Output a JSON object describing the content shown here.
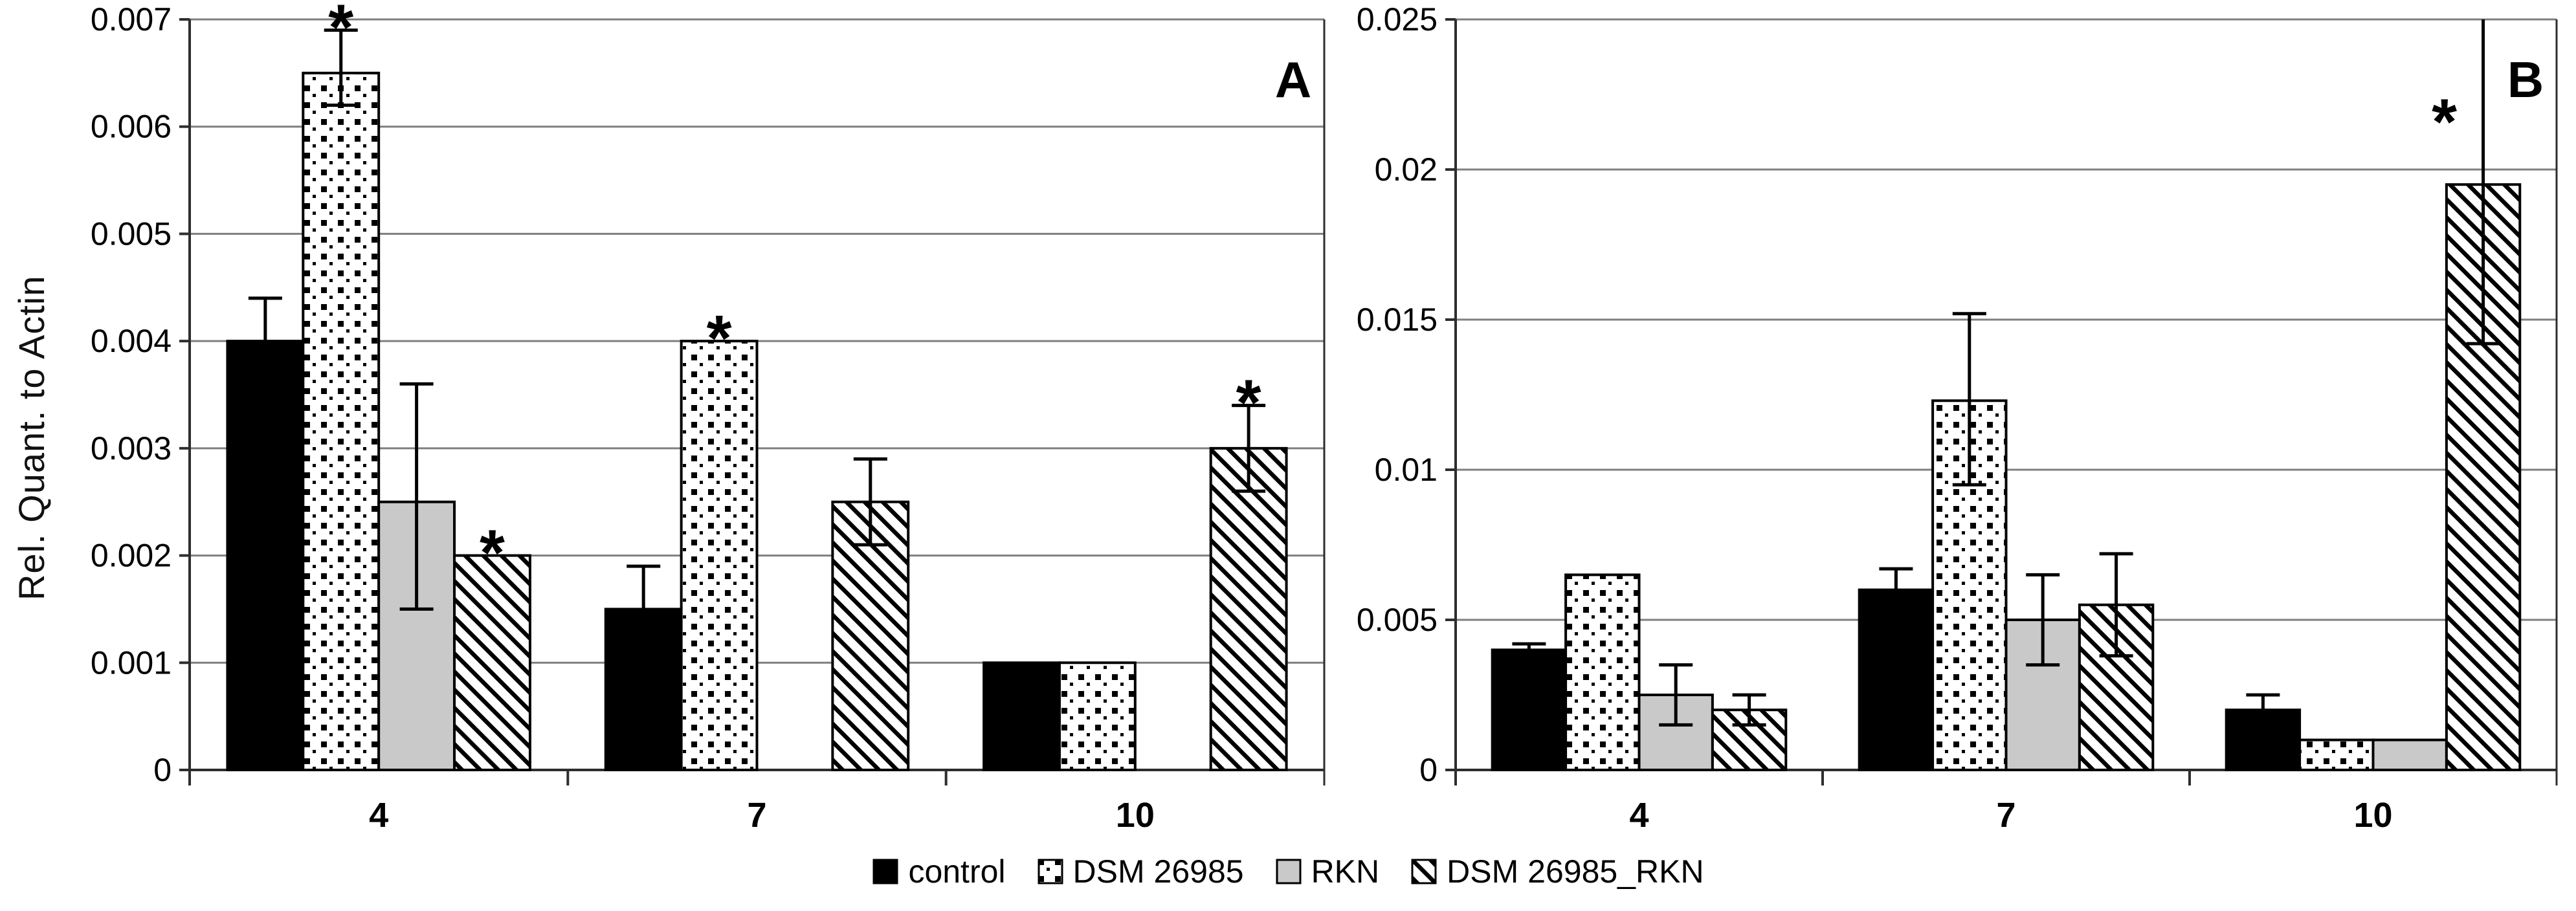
{
  "figure": {
    "background": "#ffffff",
    "gridline_color": "#7f7f7f",
    "axis_color": "#2e2e2e",
    "bar_border_color": "#000000",
    "gray_fill": "#c9c9c9",
    "asterisk_symbol": "*"
  },
  "legend": {
    "items": [
      {
        "label": "control",
        "pattern": "solid"
      },
      {
        "label": "DSM 26985",
        "pattern": "dots"
      },
      {
        "label": "RKN",
        "pattern": "gray"
      },
      {
        "label": "DSM 26985_RKN",
        "pattern": "hatch"
      }
    ]
  },
  "chart_data": [
    {
      "type": "bar",
      "panel_label": "A",
      "ylabel": "Rel. Quant. to Actin",
      "xlabel": "",
      "ylim": [
        0,
        0.007
      ],
      "grid": true,
      "legend_position": "bottom-center-shared",
      "yticks": [
        {
          "v": 0,
          "label": "0"
        },
        {
          "v": 0.001,
          "label": "0.001"
        },
        {
          "v": 0.002,
          "label": "0.002"
        },
        {
          "v": 0.003,
          "label": "0.003"
        },
        {
          "v": 0.004,
          "label": "0.004"
        },
        {
          "v": 0.005,
          "label": "0.005"
        },
        {
          "v": 0.006,
          "label": "0.006"
        },
        {
          "v": 0.007,
          "label": "0.007"
        }
      ],
      "categories": [
        "4",
        "7",
        "10"
      ],
      "series": [
        {
          "name": "control",
          "pattern": "solid",
          "values": [
            0.004,
            0.0015,
            0.001
          ],
          "errors": [
            [
              0.0036,
              0.0044
            ],
            [
              0.0011,
              0.0019
            ],
            null
          ],
          "asterisks": [
            null,
            null,
            null
          ]
        },
        {
          "name": "DSM 26985",
          "pattern": "dots",
          "values": [
            0.0065,
            0.004,
            0.001
          ],
          "errors": [
            [
              0.0062,
              0.0069
            ],
            null,
            null
          ],
          "asterisks": [
            {
              "v": 0.0069,
              "dx": 0
            },
            {
              "v": 0.004,
              "dx": 0
            },
            null
          ]
        },
        {
          "name": "RKN",
          "pattern": "gray",
          "values": [
            0.0025,
            0,
            0
          ],
          "errors": [
            [
              0.0015,
              0.0036
            ],
            null,
            null
          ],
          "asterisks": [
            null,
            null,
            null
          ]
        },
        {
          "name": "DSM 26985_RKN",
          "pattern": "hatch",
          "values": [
            0.002,
            0.0025,
            0.003
          ],
          "errors": [
            null,
            [
              0.0021,
              0.0029
            ],
            [
              0.0026,
              0.0034
            ]
          ],
          "asterisks": [
            {
              "v": 0.002,
              "dx": 0
            },
            null,
            {
              "v": 0.0034,
              "dx": 0
            }
          ]
        }
      ]
    },
    {
      "type": "bar",
      "panel_label": "B",
      "ylabel": "",
      "xlabel": "",
      "ylim": [
        0,
        0.025
      ],
      "grid": true,
      "legend_position": "bottom-center-shared",
      "yticks": [
        {
          "v": 0,
          "label": "0"
        },
        {
          "v": 0.005,
          "label": "0.005"
        },
        {
          "v": 0.01,
          "label": "0.01"
        },
        {
          "v": 0.015,
          "label": "0.015"
        },
        {
          "v": 0.02,
          "label": "0.02"
        },
        {
          "v": 0.025,
          "label": "0.025"
        }
      ],
      "categories": [
        "4",
        "7",
        "10"
      ],
      "series": [
        {
          "name": "control",
          "pattern": "solid",
          "values": [
            0.004,
            0.006,
            0.002
          ],
          "errors": [
            [
              0.0038,
              0.0042
            ],
            [
              0.0053,
              0.0067
            ],
            [
              0.0016,
              0.0025
            ]
          ],
          "asterisks": [
            null,
            null,
            null
          ]
        },
        {
          "name": "DSM 26985",
          "pattern": "dots",
          "values": [
            0.0065,
            0.0123,
            0.001
          ],
          "errors": [
            null,
            [
              0.0095,
              0.0152
            ],
            null
          ],
          "asterisks": [
            null,
            null,
            null
          ]
        },
        {
          "name": "RKN",
          "pattern": "gray",
          "values": [
            0.0025,
            0.005,
            0.001
          ],
          "errors": [
            [
              0.0015,
              0.0035
            ],
            [
              0.0035,
              0.0065
            ],
            null
          ],
          "asterisks": [
            null,
            null,
            null
          ]
        },
        {
          "name": "DSM 26985_RKN",
          "pattern": "hatch",
          "values": [
            0.002,
            0.0055,
            0.0195
          ],
          "errors": [
            [
              0.0015,
              0.0025
            ],
            [
              0.0038,
              0.0072
            ],
            [
              0.0142,
              0.0262
            ]
          ],
          "asterisks": [
            null,
            null,
            {
              "v": 0.0215,
              "dx": -60
            }
          ]
        }
      ]
    }
  ]
}
